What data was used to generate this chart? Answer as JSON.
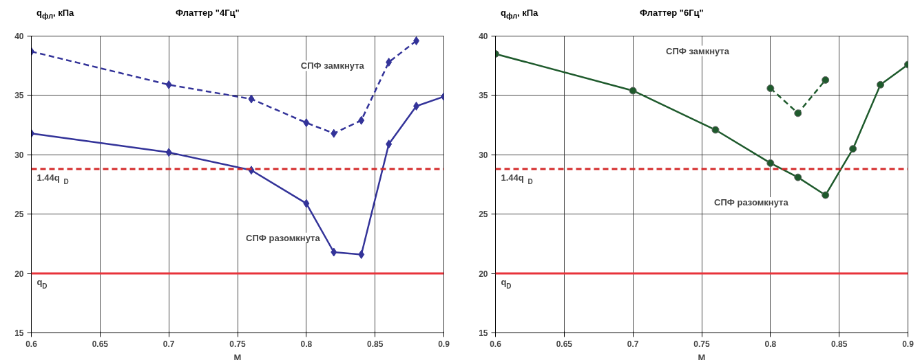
{
  "chart_data": [
    {
      "type": "line",
      "title": "Флаттер \"4Гц\"",
      "ylabel": "q$_{фл}$, кПа",
      "xlabel": "M",
      "x": [
        0.6,
        0.7,
        0.76,
        0.8,
        0.82,
        0.84,
        0.86,
        0.88,
        0.9
      ],
      "series": [
        {
          "color": "#333399",
          "line_style": "dashed",
          "values": [
            38.7,
            35.9,
            34.7,
            32.7,
            31.8,
            32.9,
            37.8,
            39.6,
            null
          ]
        },
        {
          "color": "#333399",
          "line_style": "solid",
          "values": [
            31.8,
            30.2,
            28.7,
            25.9,
            21.8,
            21.6,
            30.9,
            34.1,
            34.9
          ]
        }
      ],
      "marker": "diamond",
      "xlim": [
        0.6,
        0.9
      ],
      "xticks": [
        0.6,
        0.65,
        0.7,
        0.75,
        0.8,
        0.85,
        0.9
      ],
      "ylim": [
        15,
        40
      ],
      "yticks": [
        15,
        20,
        25,
        30,
        35,
        40
      ],
      "grid": true,
      "ref_lines": [
        {
          "axis": "y",
          "value": 28.8,
          "label": "1.44q$_{D}$",
          "color": "#d42a2a",
          "line_style": "dashed"
        },
        {
          "axis": "y",
          "value": 20,
          "label": "q$_{D}$",
          "color": "#e8333a",
          "line_style": "solid"
        }
      ],
      "annotations": [
        "СПФ замкнута",
        "СПФ разомкнута"
      ]
    },
    {
      "type": "line",
      "title": "Флаттер \"6Гц\"",
      "ylabel": "q$_{фл}$, кПа",
      "xlabel": "M",
      "x": [
        0.6,
        0.7,
        0.76,
        0.8,
        0.82,
        0.84,
        0.86,
        0.88,
        0.9
      ],
      "series": [
        {
          "color": "#1e5a2c",
          "line_style": "dashed",
          "values": [
            null,
            null,
            null,
            35.6,
            33.5,
            36.3,
            null,
            null,
            null
          ]
        },
        {
          "color": "#1e5a2c",
          "line_style": "solid",
          "values": [
            38.5,
            35.4,
            32.1,
            29.3,
            28.1,
            26.6,
            30.5,
            35.9,
            37.6
          ]
        }
      ],
      "marker": "circle",
      "xlim": [
        0.6,
        0.9
      ],
      "xticks": [
        0.6,
        0.65,
        0.7,
        0.75,
        0.8,
        0.85,
        0.9
      ],
      "ylim": [
        15,
        40
      ],
      "yticks": [
        15,
        20,
        25,
        30,
        35,
        40
      ],
      "grid": true,
      "ref_lines": [
        {
          "axis": "y",
          "value": 28.8,
          "label": "1.44q$_{D}$",
          "color": "#d42a2a",
          "line_style": "dashed"
        },
        {
          "axis": "y",
          "value": 20,
          "label": "q$_{D}$",
          "color": "#e8333a",
          "line_style": "solid"
        }
      ],
      "annotations": [
        "СПФ замкнута",
        "СПФ разомкнута"
      ]
    }
  ]
}
